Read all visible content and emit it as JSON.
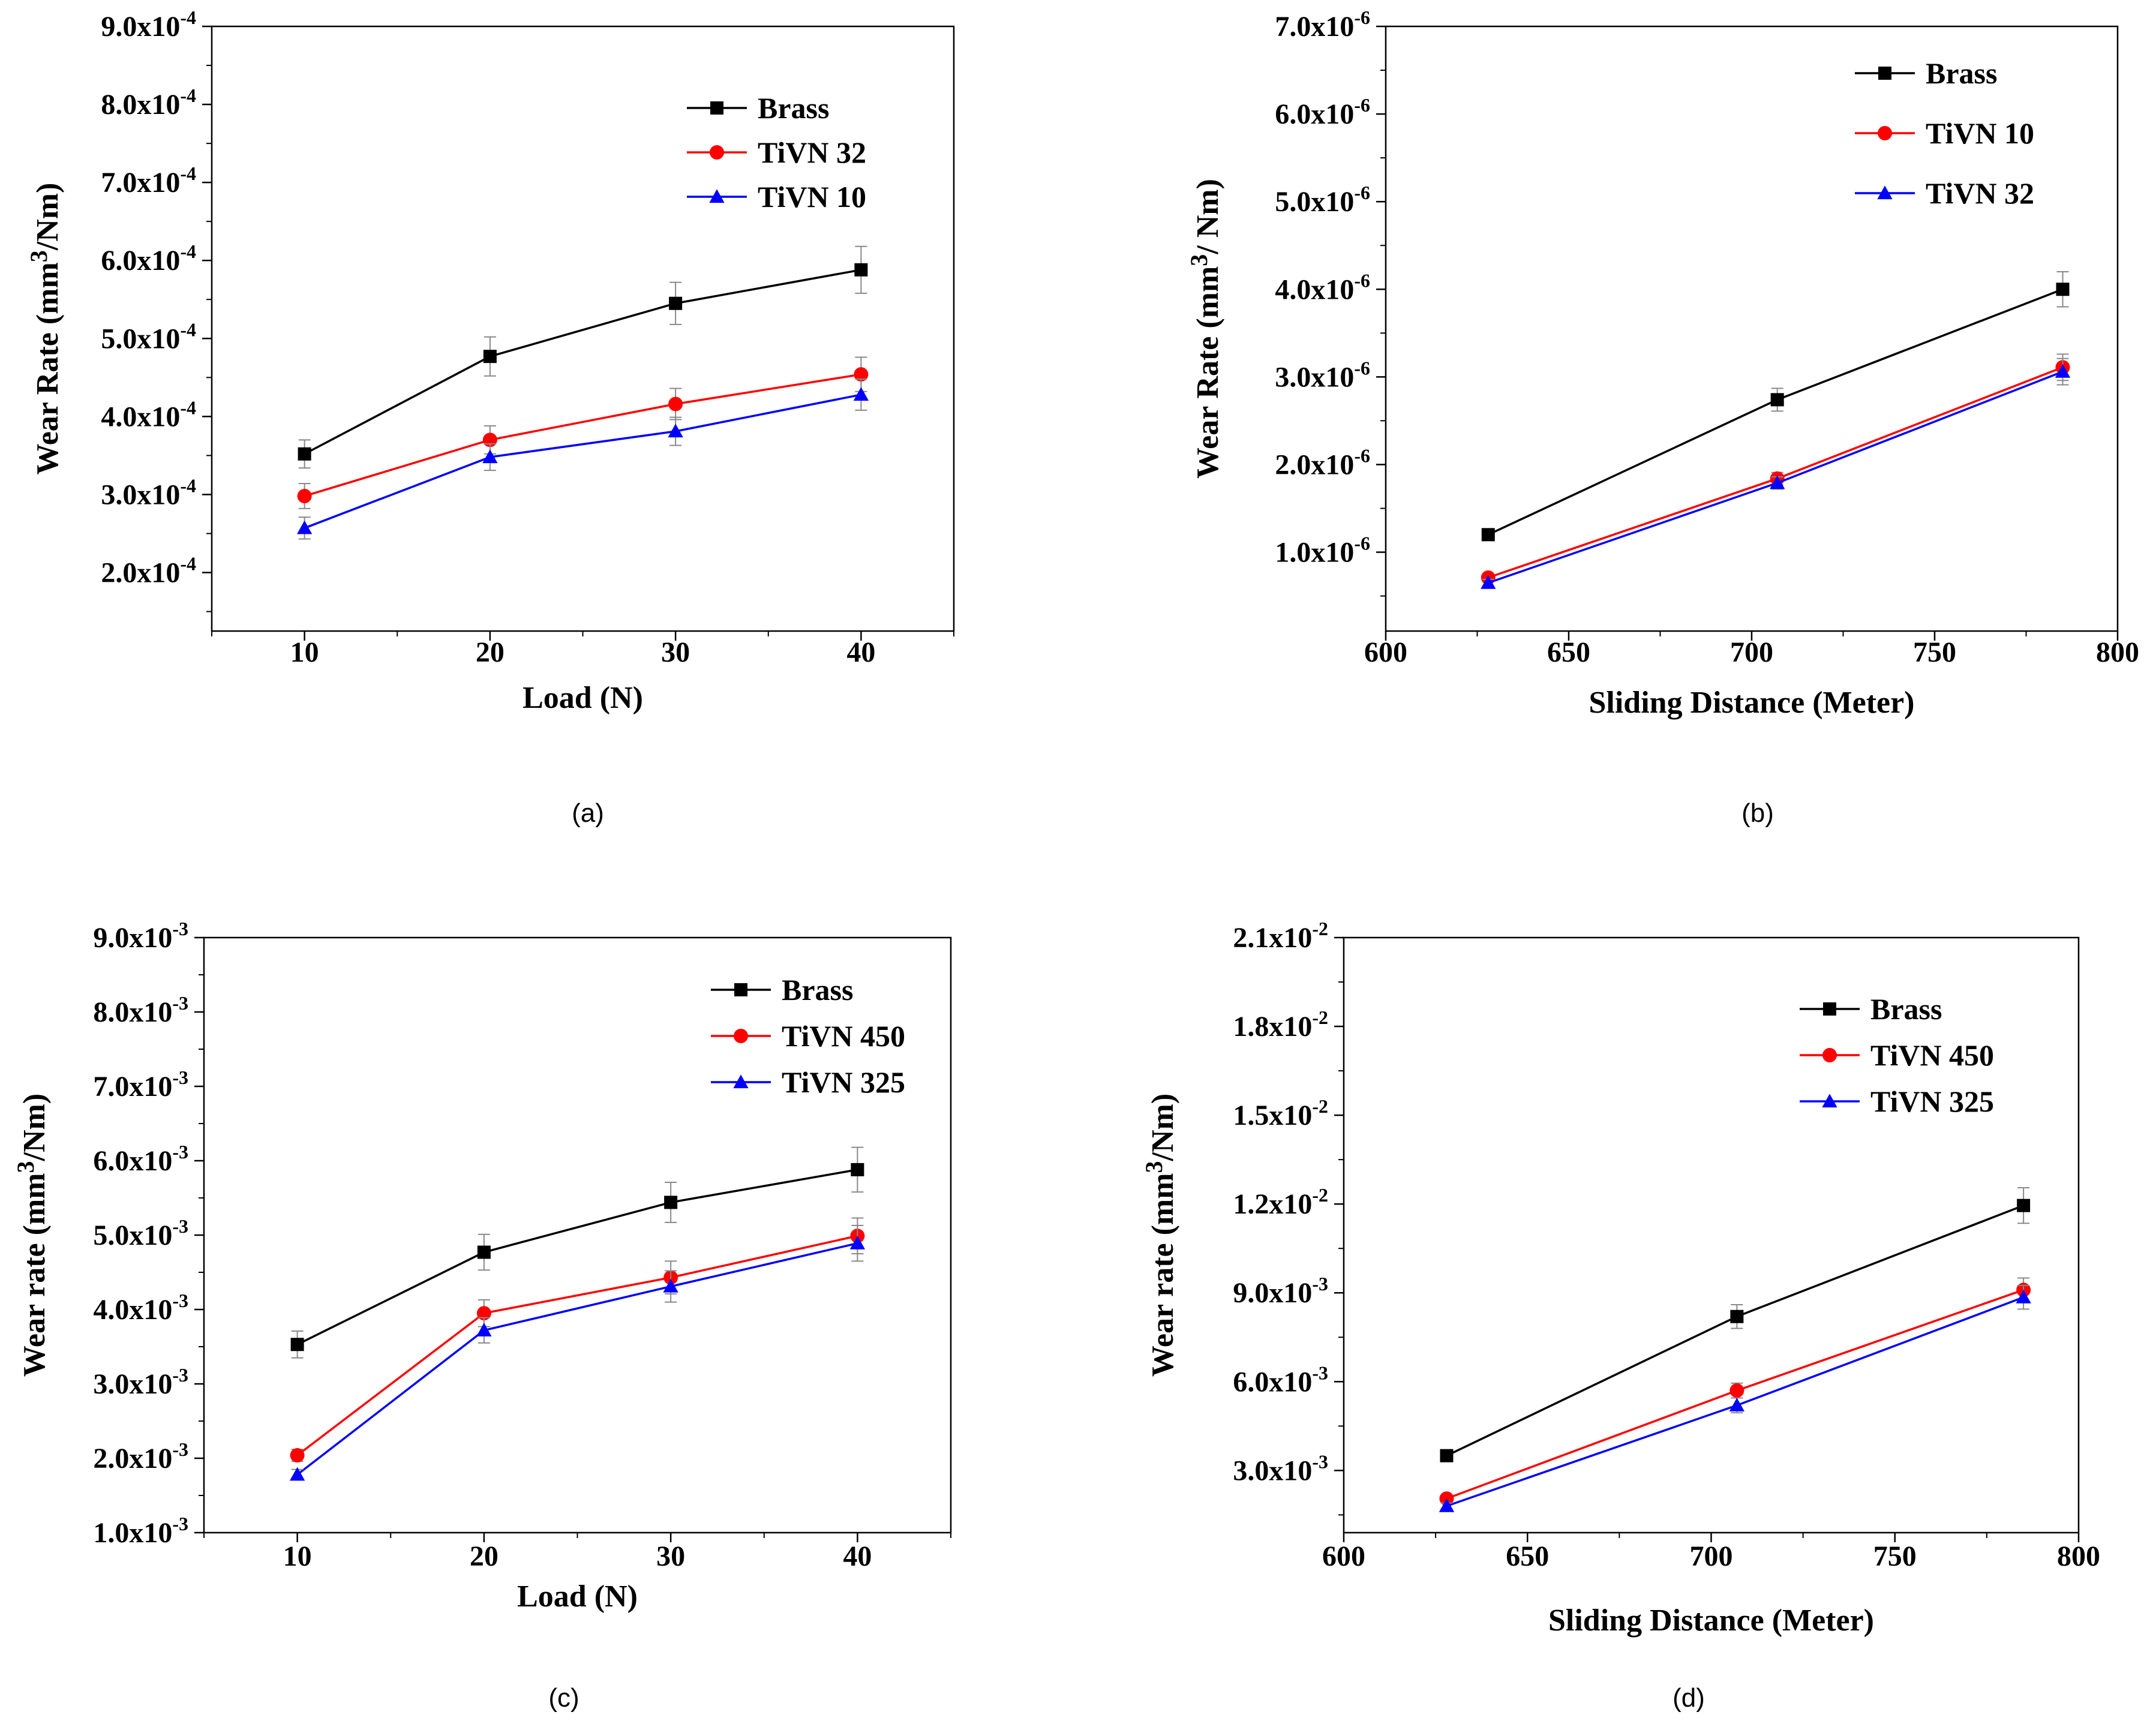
{
  "chart_data": [
    {
      "type": "line",
      "panel_label": "(a)",
      "xlabel": "Load (N)",
      "ylabel": "Wear Rate (mm3/Nm)",
      "ylabel_parts": {
        "pre": "Wear Rate (mm",
        "sup": "3",
        "post": "/Nm)"
      },
      "xlim": [
        5,
        45
      ],
      "ylim": [
        1.25,
        9.0
      ],
      "y_exponent": "-4",
      "xticks": [
        10,
        20,
        30,
        40
      ],
      "xtick_labels": [
        "10",
        "20",
        "30",
        "40"
      ],
      "yticks": [
        2,
        3,
        4,
        5,
        6,
        7,
        8,
        9
      ],
      "ytick_labels": [
        "2.0x10",
        "3.0x10",
        "4.0x10",
        "5.0x10",
        "6.0x10",
        "7.0x10",
        "8.0x10",
        "9.0x10"
      ],
      "grid": false,
      "legend_position": "top-right",
      "series": [
        {
          "name": "Brass",
          "color": "#000000",
          "marker": "square",
          "x": [
            10,
            20,
            30,
            40
          ],
          "values": [
            3.52,
            4.77,
            5.45,
            5.88
          ],
          "errors": [
            0.18,
            0.25,
            0.27,
            0.3
          ]
        },
        {
          "name": "TiVN 32",
          "color": "#ff0000",
          "marker": "circle",
          "x": [
            10,
            20,
            30,
            40
          ],
          "values": [
            2.98,
            3.7,
            4.16,
            4.54
          ],
          "errors": [
            0.16,
            0.18,
            0.2,
            0.22
          ]
        },
        {
          "name": "TiVN 10",
          "color": "#0000ff",
          "marker": "triangle",
          "x": [
            10,
            20,
            30,
            40
          ],
          "values": [
            2.57,
            3.48,
            3.81,
            4.28
          ],
          "errors": [
            0.14,
            0.17,
            0.18,
            0.2
          ]
        }
      ]
    },
    {
      "type": "line",
      "panel_label": "(b)",
      "xlabel": "Sliding Distance (Meter)",
      "ylabel": "Wear Rate (mm3/ Nm)",
      "ylabel_parts": {
        "pre": "Wear Rate (mm",
        "sup": "3",
        "post": "/ Nm)"
      },
      "xlim": [
        600,
        800
      ],
      "ylim": [
        0.1,
        7.0
      ],
      "y_exponent": "-6",
      "xticks": [
        600,
        650,
        700,
        750,
        800
      ],
      "xtick_labels": [
        "600",
        "650",
        "700",
        "750",
        "800"
      ],
      "yticks": [
        1,
        2,
        3,
        4,
        5,
        6,
        7
      ],
      "ytick_labels": [
        "1.0x10",
        "2.0x10",
        "3.0x10",
        "4.0x10",
        "5.0x10",
        "6.0x10",
        "7.0x10"
      ],
      "grid": false,
      "legend_position": "top-right",
      "series": [
        {
          "name": "Brass",
          "color": "#000000",
          "marker": "square",
          "x": [
            628,
            707,
            785
          ],
          "values": [
            1.2,
            2.74,
            4.0
          ],
          "errors": [
            0.04,
            0.13,
            0.2
          ]
        },
        {
          "name": "TiVN 10",
          "color": "#ff0000",
          "marker": "circle",
          "x": [
            628,
            707,
            785
          ],
          "values": [
            0.71,
            1.84,
            3.11
          ],
          "errors": [
            0.04,
            0.07,
            0.15
          ]
        },
        {
          "name": "TiVN 32",
          "color": "#0000ff",
          "marker": "triangle",
          "x": [
            628,
            707,
            785
          ],
          "values": [
            0.65,
            1.79,
            3.06
          ],
          "errors": [
            0.04,
            0.07,
            0.15
          ]
        }
      ]
    },
    {
      "type": "line",
      "panel_label": "(c)",
      "xlabel": "Load (N)",
      "ylabel": "Wear rate (mm3/Nm)",
      "ylabel_parts": {
        "pre": "Wear rate (mm",
        "sup": "3",
        "post": "/Nm)"
      },
      "xlim": [
        5,
        45
      ],
      "ylim": [
        1.0,
        9.0
      ],
      "y_exponent": "-3",
      "xticks": [
        10,
        20,
        30,
        40
      ],
      "xtick_labels": [
        "10",
        "20",
        "30",
        "40"
      ],
      "yticks": [
        1,
        2,
        3,
        4,
        5,
        6,
        7,
        8,
        9
      ],
      "ytick_labels": [
        "1.0x10",
        "2.0x10",
        "3.0x10",
        "4.0x10",
        "5.0x10",
        "6.0x10",
        "7.0x10",
        "8.0x10",
        "9.0x10"
      ],
      "grid": false,
      "legend_position": "top-right",
      "series": [
        {
          "name": "Brass",
          "color": "#000000",
          "marker": "square",
          "x": [
            10,
            20,
            30,
            40
          ],
          "values": [
            3.53,
            4.77,
            5.44,
            5.88
          ],
          "errors": [
            0.18,
            0.24,
            0.27,
            0.3
          ]
        },
        {
          "name": "TiVN 450",
          "color": "#ff0000",
          "marker": "circle",
          "x": [
            10,
            20,
            30,
            40
          ],
          "values": [
            2.04,
            3.95,
            4.43,
            4.99
          ],
          "errors": [
            0.08,
            0.18,
            0.22,
            0.24
          ]
        },
        {
          "name": "TiVN 325",
          "color": "#0000ff",
          "marker": "triangle",
          "x": [
            10,
            20,
            30,
            40
          ],
          "values": [
            1.78,
            3.72,
            4.31,
            4.89
          ],
          "errors": [
            0.07,
            0.17,
            0.21,
            0.24
          ]
        }
      ]
    },
    {
      "type": "line",
      "panel_label": "(d)",
      "xlabel": "Sliding Distance (Meter)",
      "ylabel": "Wear rate (mm3/Nm)",
      "ylabel_parts": {
        "pre": "Wear rate (mm",
        "sup": "3",
        "post": "/Nm)"
      },
      "xlim": [
        600,
        800
      ],
      "ylim": [
        0.9,
        21.0
      ],
      "y_exponent_note": "mixed: -3 below 12, -2 from 12",
      "xticks": [
        600,
        650,
        700,
        750,
        800
      ],
      "xtick_labels": [
        "600",
        "650",
        "700",
        "750",
        "800"
      ],
      "yticks": [
        3,
        6,
        9,
        12,
        15,
        18,
        21
      ],
      "ytick_labels": [
        "3.0x10",
        "6.0x10",
        "9.0x10",
        "1.2x10",
        "1.5x10",
        "1.8x10",
        "2.1x10"
      ],
      "ytick_exponents": [
        "-3",
        "-3",
        "-3",
        "-2",
        "-2",
        "-2",
        "-2"
      ],
      "grid": false,
      "legend_position": "top-right",
      "series": [
        {
          "name": "Brass",
          "color": "#000000",
          "marker": "square",
          "x": [
            628,
            707,
            785
          ],
          "values": [
            3.5,
            8.2,
            11.95
          ],
          "errors": [
            0.15,
            0.4,
            0.6
          ]
        },
        {
          "name": "TiVN 450",
          "color": "#ff0000",
          "marker": "circle",
          "x": [
            628,
            707,
            785
          ],
          "values": [
            2.05,
            5.7,
            9.1
          ],
          "errors": [
            0.1,
            0.25,
            0.4
          ]
        },
        {
          "name": "TiVN 325",
          "color": "#0000ff",
          "marker": "triangle",
          "x": [
            628,
            707,
            785
          ],
          "values": [
            1.8,
            5.2,
            8.85
          ],
          "errors": [
            0.1,
            0.25,
            0.4
          ]
        }
      ]
    }
  ]
}
